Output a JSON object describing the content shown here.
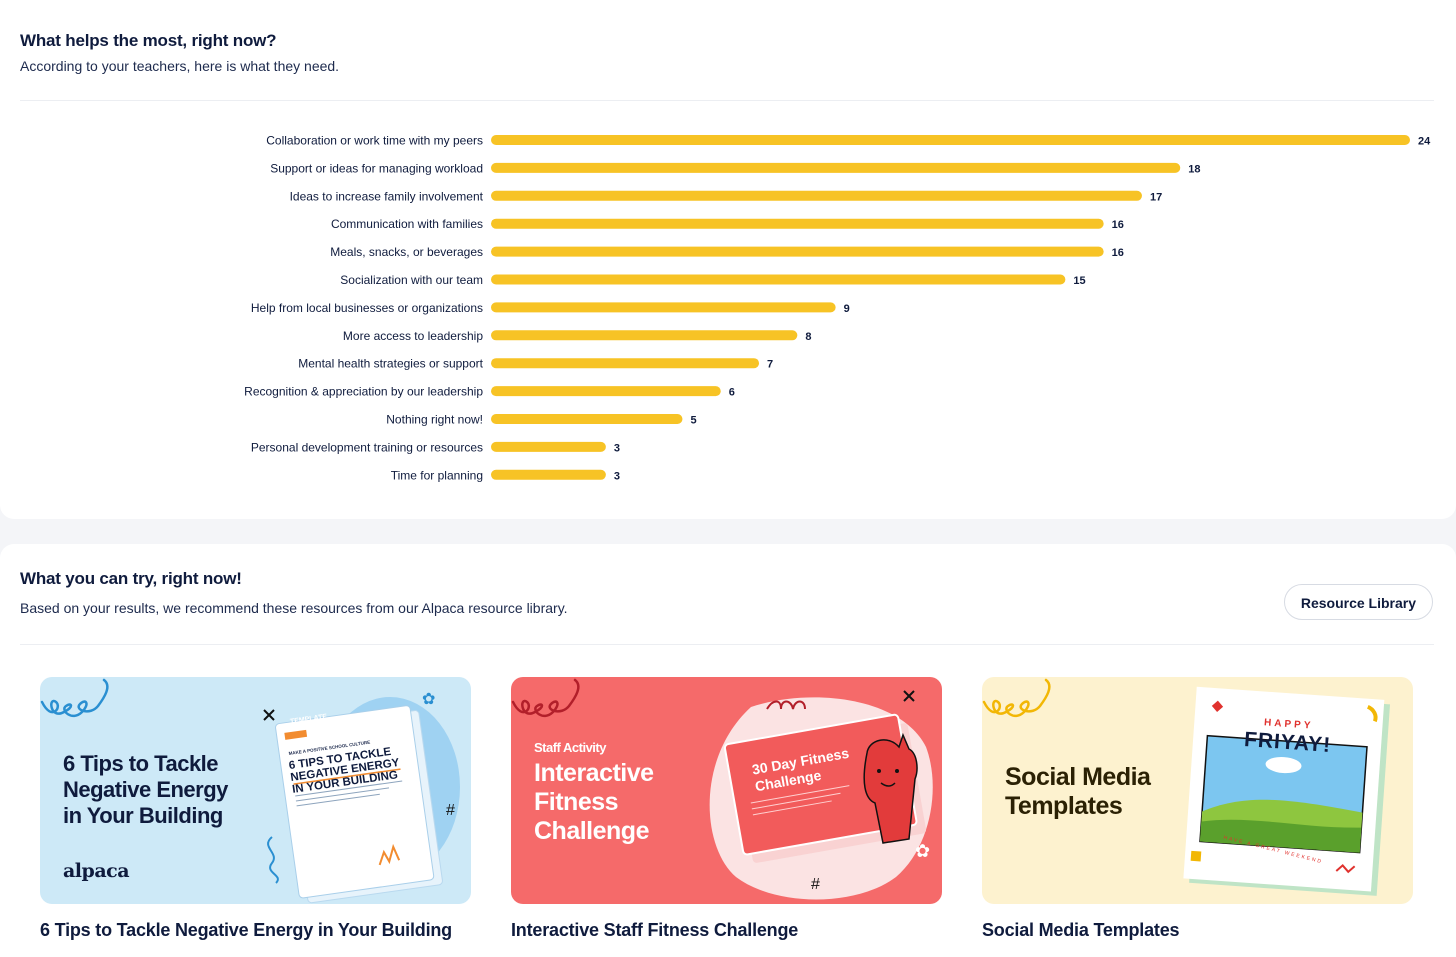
{
  "helps": {
    "title": "What helps the most, right now?",
    "subtitle": "According to your teachers, here is what they need."
  },
  "chart_data": {
    "type": "bar",
    "orientation": "horizontal",
    "bar_color": "#f7c325",
    "xlim": [
      0,
      24
    ],
    "categories": [
      "Collaboration or work time with my peers",
      "Support or ideas for managing workload",
      "Ideas to increase family involvement",
      "Communication with families",
      "Meals, snacks, or beverages",
      "Socialization with our team",
      "Help from local businesses or organizations",
      "More access to leadership",
      "Mental health strategies or support",
      "Recognition & appreciation by our leadership",
      "Nothing right now!",
      "Personal development training or resources",
      "Time for planning"
    ],
    "values": [
      24,
      18,
      17,
      16,
      16,
      15,
      9,
      8,
      7,
      6,
      5,
      3,
      3
    ]
  },
  "try": {
    "title": "What you can try, right now!",
    "subtitle": "Based on your results, we recommend these resources from our Alpaca resource library.",
    "library_button": "Resource Library"
  },
  "resources": [
    {
      "title": "6 Tips to Tackle Negative Energy in Your Building",
      "art_lines": [
        "6 Tips to Tackle",
        "Negative Energy",
        "in Your Building"
      ],
      "brand": "alpaca",
      "doc_tag": "TEMPLATE",
      "doc_kicker": "MAKE A POSITIVE SCHOOL CULTURE",
      "doc_title_lines": [
        "6 TIPS TO TACKLE",
        "NEGATIVE ENERGY",
        "IN YOUR BUILDING"
      ],
      "bg": "#cde9f7"
    },
    {
      "title": "Interactive Staff Fitness Challenge",
      "kicker": "Staff Activity",
      "art_lines": [
        "Interactive",
        "Fitness",
        "Challenge"
      ],
      "doc_title_lines": [
        "30 Day Fitness",
        "Challenge"
      ],
      "bg": "#f56a6a"
    },
    {
      "title": "Social Media Templates",
      "art_lines": [
        "Social Media",
        "Templates"
      ],
      "card_top": "HAPPY",
      "card_main": "FRIYAY!",
      "card_bottom": "HAVE A GREAT WEEKEND",
      "bg": "#fdf2cf"
    }
  ]
}
